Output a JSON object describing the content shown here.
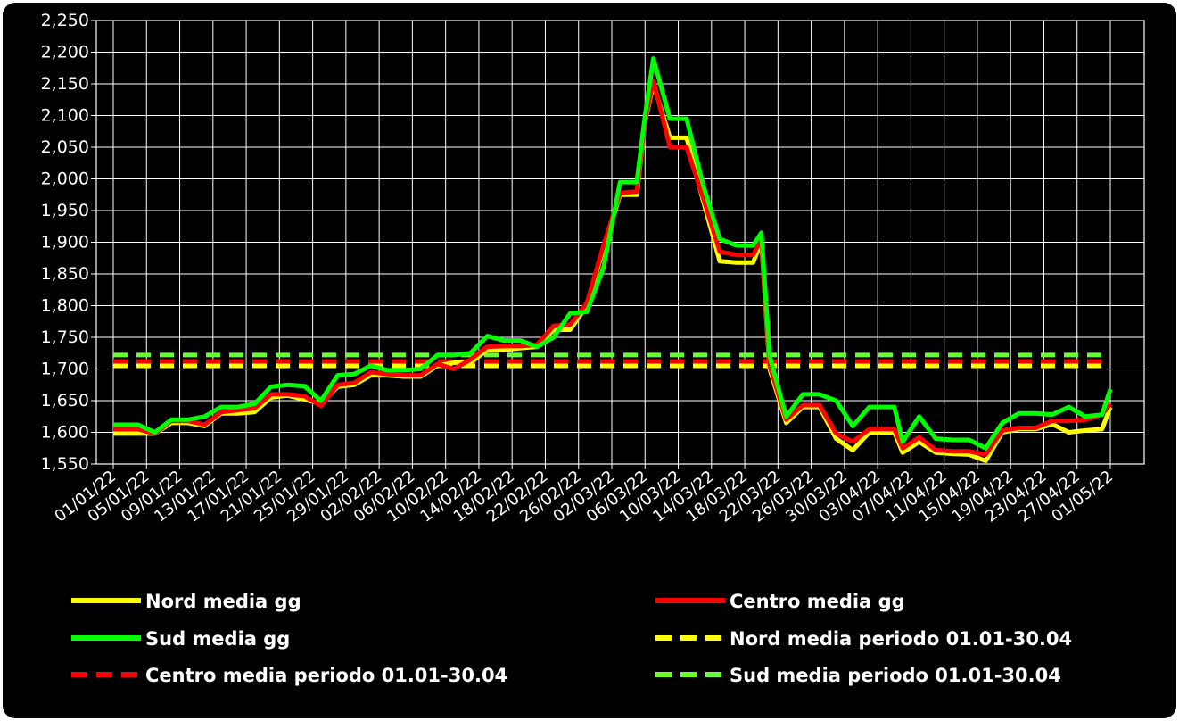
{
  "chart_data": {
    "type": "line",
    "title": "",
    "xlabel": "",
    "ylabel": "",
    "ylim": [
      1550,
      2250
    ],
    "yticks": [
      "1,550",
      "1,600",
      "1,650",
      "1,700",
      "1,750",
      "1,800",
      "1,850",
      "1,900",
      "1,950",
      "2,000",
      "2,050",
      "2,100",
      "2,150",
      "2,200",
      "2,250"
    ],
    "xticks": [
      "01/01/22",
      "05/01/22",
      "09/01/22",
      "13/01/22",
      "17/01/22",
      "21/01/22",
      "25/01/22",
      "29/01/22",
      "02/02/22",
      "06/02/22",
      "10/02/22",
      "14/02/22",
      "18/02/22",
      "22/02/22",
      "26/02/22",
      "02/03/22",
      "06/03/22",
      "10/03/22",
      "14/03/22",
      "18/03/22",
      "22/03/22",
      "26/03/22",
      "30/03/22",
      "03/04/22",
      "07/04/22",
      "11/04/22",
      "15/04/22",
      "19/04/22",
      "23/04/22",
      "27/04/22",
      "01/05/22"
    ],
    "grid": true,
    "legend_position": "bottom",
    "colors": {
      "background": "#000000",
      "grid": "#ffffff",
      "nord": "#ffff00",
      "centro": "#ff0000",
      "sud": "#00ff00",
      "sud_avg": "#66ff33"
    },
    "x_days": [
      1,
      4,
      6,
      8,
      10,
      12,
      14,
      16,
      18,
      20,
      22,
      24,
      26,
      28,
      30,
      32,
      34,
      36,
      38,
      40,
      42,
      44,
      46,
      48,
      50,
      52,
      54,
      56,
      58,
      60,
      62,
      64,
      65,
      66,
      68,
      70,
      72,
      74,
      76,
      78,
      79,
      80,
      82,
      84,
      86,
      88,
      90,
      92,
      94,
      95,
      96,
      98,
      100,
      102,
      104,
      106,
      108,
      110,
      112,
      114,
      116,
      118,
      120,
      121
    ],
    "series": [
      {
        "name": "Nord media gg",
        "style": "solid",
        "values": [
          1598,
          1598,
          1598,
          1615,
          1615,
          1610,
          1630,
          1630,
          1632,
          1655,
          1658,
          1652,
          1645,
          1672,
          1675,
          1690,
          1690,
          1688,
          1688,
          1705,
          1710,
          1710,
          1730,
          1730,
          1733,
          1735,
          1762,
          1762,
          1800,
          1890,
          1975,
          1975,
          2090,
          2150,
          2065,
          2065,
          1965,
          1870,
          1868,
          1868,
          1900,
          1700,
          1615,
          1640,
          1640,
          1590,
          1572,
          1600,
          1600,
          1600,
          1568,
          1585,
          1568,
          1566,
          1565,
          1555,
          1600,
          1605,
          1605,
          1613,
          1600,
          1603,
          1605,
          1640
        ]
      },
      {
        "name": "Centro media gg",
        "style": "solid",
        "values": [
          1605,
          1605,
          1598,
          1618,
          1618,
          1612,
          1632,
          1635,
          1638,
          1660,
          1660,
          1657,
          1642,
          1675,
          1678,
          1695,
          1692,
          1690,
          1690,
          1708,
          1700,
          1715,
          1735,
          1736,
          1736,
          1738,
          1768,
          1770,
          1804,
          1895,
          1978,
          1980,
          2092,
          2155,
          2050,
          2050,
          1970,
          1885,
          1880,
          1880,
          1905,
          1705,
          1620,
          1643,
          1643,
          1598,
          1585,
          1605,
          1605,
          1605,
          1575,
          1592,
          1572,
          1570,
          1570,
          1565,
          1603,
          1607,
          1607,
          1618,
          1618,
          1620,
          1628,
          1645
        ]
      },
      {
        "name": "Sud media gg",
        "style": "solid",
        "values": [
          1612,
          1612,
          1600,
          1620,
          1620,
          1625,
          1640,
          1640,
          1645,
          1672,
          1675,
          1673,
          1650,
          1690,
          1692,
          1705,
          1698,
          1698,
          1700,
          1722,
          1722,
          1725,
          1752,
          1745,
          1745,
          1735,
          1750,
          1788,
          1790,
          1860,
          1995,
          1995,
          2100,
          2190,
          2095,
          2095,
          1990,
          1905,
          1895,
          1895,
          1915,
          1720,
          1625,
          1660,
          1660,
          1650,
          1610,
          1640,
          1640,
          1640,
          1585,
          1625,
          1590,
          1588,
          1588,
          1575,
          1615,
          1630,
          1630,
          1628,
          1640,
          1625,
          1628,
          1668
        ]
      },
      {
        "name": "Nord media periodo 01.01-30.04",
        "style": "dashed",
        "values": [
          1705
        ]
      },
      {
        "name": "Centro media periodo 01.01-30.04",
        "style": "dashed",
        "values": [
          1712
        ]
      },
      {
        "name": "Sud media periodo 01.01-30.04",
        "style": "dashed",
        "values": [
          1722
        ]
      }
    ],
    "legend": [
      {
        "label": "Nord media gg",
        "color": "#ffff00",
        "style": "solid"
      },
      {
        "label": "Centro media gg",
        "color": "#ff0000",
        "style": "solid"
      },
      {
        "label": "Sud media gg",
        "color": "#00ff00",
        "style": "solid"
      },
      {
        "label": "Nord media periodo 01.01-30.04",
        "color": "#ffff00",
        "style": "dashed"
      },
      {
        "label": "Centro media periodo 01.01-30.04",
        "color": "#ff0000",
        "style": "dashed"
      },
      {
        "label": "Sud media periodo 01.01-30.04",
        "color": "#66ff33",
        "style": "dashed"
      }
    ]
  }
}
